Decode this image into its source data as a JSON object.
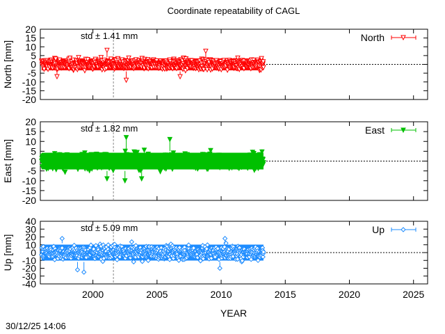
{
  "chart_data": {
    "type": "scatter",
    "title": "Coordinate repeatability of CAGL",
    "xlabel": "YEAR",
    "xlim": [
      1995.9,
      2026.1
    ],
    "xticks": [
      2000,
      2005,
      2010,
      2015,
      2020,
      2025
    ],
    "x_tick_labels": [
      "2000",
      "2005",
      "2010",
      "2015",
      "2020",
      "2025"
    ],
    "data_range": [
      1996.0,
      2013.3
    ],
    "event_line_year": 2001.6,
    "timestamp": "30/12/25 14:06",
    "panels": [
      {
        "name": "North",
        "ylabel": "North [mm]",
        "ylim": [
          -20,
          20
        ],
        "yticks": [
          20,
          15,
          10,
          5,
          0,
          -5,
          -10,
          -15,
          -20
        ],
        "y_tick_labels": [
          "20",
          "15",
          "10",
          "5",
          "0",
          "-5",
          "-10",
          "-15",
          "-20"
        ],
        "std_label": "std ± 1.41 mm",
        "std": 1.41,
        "color": "#ff0000",
        "marker": "triangle-down-open",
        "legend": "North",
        "typical_band": [
          -4,
          4
        ],
        "outliers": [
          {
            "x": 2001.1,
            "y": 8
          },
          {
            "x": 2008.8,
            "y": 7.5
          },
          {
            "x": 2002.6,
            "y": -9
          },
          {
            "x": 1997.2,
            "y": -7
          },
          {
            "x": 2006.8,
            "y": -7
          }
        ]
      },
      {
        "name": "East",
        "ylabel": "East [mm]",
        "ylim": [
          -20,
          20
        ],
        "yticks": [
          20,
          15,
          10,
          5,
          0,
          -5,
          -10,
          -15,
          -20
        ],
        "y_tick_labels": [
          "20",
          "15",
          "10",
          "5",
          "0",
          "-5",
          "-10",
          "-15",
          "-20"
        ],
        "std_label": "std ± 1.82 mm",
        "std": 1.82,
        "color": "#00c000",
        "marker": "triangle-down-filled",
        "legend": "East",
        "typical_band": [
          -5,
          5
        ],
        "outliers": [
          {
            "x": 2002.6,
            "y": 12
          },
          {
            "x": 2006.0,
            "y": 11
          },
          {
            "x": 2002.5,
            "y": -10
          },
          {
            "x": 2001.1,
            "y": -9
          },
          {
            "x": 2003.8,
            "y": -9
          }
        ]
      },
      {
        "name": "Up",
        "ylabel": "Up [mm]",
        "ylim": [
          -40,
          40
        ],
        "yticks": [
          40,
          30,
          20,
          10,
          0,
          -10,
          -20,
          -30,
          -40
        ],
        "y_tick_labels": [
          "40",
          "30",
          "20",
          "10",
          "0",
          "-10",
          "-20",
          "-30",
          "-40"
        ],
        "std_label": "std ± 5.09 mm",
        "std": 5.09,
        "color": "#1e8cff",
        "marker": "diamond-open",
        "legend": "Up",
        "typical_band": [
          -12,
          12
        ],
        "outliers": [
          {
            "x": 1999.3,
            "y": -25
          },
          {
            "x": 1998.8,
            "y": -22
          },
          {
            "x": 2009.9,
            "y": -20
          },
          {
            "x": 1997.6,
            "y": 18
          },
          {
            "x": 2010.3,
            "y": 18
          }
        ]
      }
    ]
  }
}
